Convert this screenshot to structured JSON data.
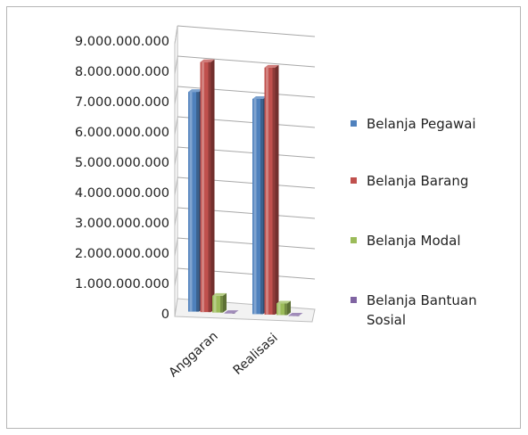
{
  "chart_data": {
    "type": "bar",
    "categories": [
      "Anggaran",
      "Realisasi"
    ],
    "ylim": [
      0,
      9000000000
    ],
    "yticks": [
      "0",
      "1.000.000.000",
      "2.000.000.000",
      "3.000.000.000",
      "4.000.000.000",
      "5.000.000.000",
      "6.000.000.000",
      "7.000.000.000",
      "8.000.000.000",
      "9.000.000.000"
    ],
    "grid": true,
    "legend_position": "right",
    "series": [
      {
        "name": "Belanja Pegawai",
        "color": "#4f81bd",
        "values": [
          7250000000,
          7100000000
        ]
      },
      {
        "name": "Belanja Barang",
        "color": "#c0504d",
        "values": [
          8250000000,
          8150000000
        ]
      },
      {
        "name": "Belanja Modal",
        "color": "#9bbb59",
        "values": [
          550000000,
          380000000
        ]
      },
      {
        "name": "Belanja Bantuan Sosial",
        "color": "#8064a2",
        "values": [
          0,
          0
        ]
      }
    ],
    "legend_lines": [
      [
        "Belanja Pegawai"
      ],
      [
        "Belanja Barang"
      ],
      [
        "Belanja Modal"
      ],
      [
        "Belanja Bantuan",
        "Sosial"
      ]
    ]
  }
}
